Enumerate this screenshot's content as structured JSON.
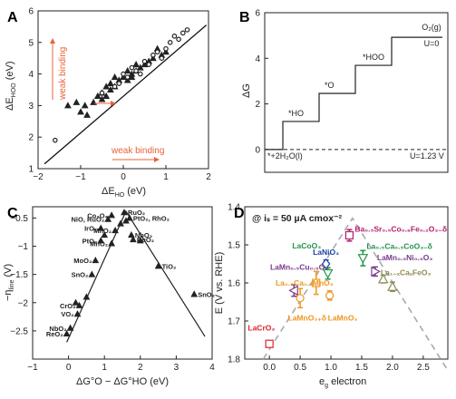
{
  "colors": {
    "axis": "#222222",
    "fit_line": "#111111",
    "weak_binding": "#e8633a",
    "dashed": "#aaaaaa",
    "orange": "#f0961e",
    "red": "#e0202a",
    "blue": "#1b3fa8",
    "green": "#21944a",
    "magenta": "#b21f6e",
    "purple": "#7a3a8e",
    "olive": "#8f8a55",
    "teal": "#2e7a6c"
  },
  "chart_data": [
    {
      "panel": "A",
      "type": "scatter",
      "xlabel_main": "ΔE",
      "xlabel_sub": "HO",
      "xlabel_unit": "(eV)",
      "ylabel_main": "ΔE",
      "ylabel_sub": "HOO",
      "ylabel_unit": "(eV)",
      "xlim": [
        -2,
        2
      ],
      "ylim": [
        1,
        6
      ],
      "xticks": [
        -2,
        -1,
        0,
        1,
        2
      ],
      "yticks": [
        1,
        2,
        3,
        4,
        5,
        6
      ],
      "fit_line": {
        "x": [
          -1.85,
          1.95
        ],
        "y": [
          1.15,
          5.55
        ]
      },
      "annotations": {
        "weak_binding_x": "weak binding",
        "weak_binding_y": "weak binding"
      },
      "series": [
        {
          "marker": "triangle",
          "points": [
            [
              -1.3,
              3.0
            ],
            [
              -1.1,
              3.1
            ],
            [
              -0.9,
              3.0
            ],
            [
              -0.7,
              3.1
            ],
            [
              -0.85,
              2.7
            ],
            [
              -1.0,
              2.8
            ],
            [
              -0.5,
              3.2
            ],
            [
              -0.4,
              3.6
            ],
            [
              -0.6,
              3.3
            ],
            [
              -0.3,
              3.5
            ],
            [
              -0.2,
              3.9
            ],
            [
              -0.1,
              3.8
            ],
            [
              0.0,
              3.9
            ],
            [
              0.1,
              3.8
            ],
            [
              0.2,
              4.0
            ],
            [
              0.3,
              4.1
            ],
            [
              0.4,
              4.2
            ],
            [
              0.5,
              4.3
            ],
            [
              -0.5,
              3.4
            ],
            [
              -0.3,
              3.7
            ],
            [
              0.1,
              4.1
            ],
            [
              0.6,
              4.4
            ],
            [
              0.7,
              4.5
            ],
            [
              0.9,
              4.6
            ],
            [
              0.8,
              4.8
            ],
            [
              1.0,
              4.7
            ],
            [
              -0.2,
              3.6
            ],
            [
              -0.4,
              3.3
            ],
            [
              0.2,
              3.9
            ],
            [
              0.3,
              4.3
            ]
          ]
        },
        {
          "marker": "circle",
          "points": [
            [
              -1.6,
              1.9
            ],
            [
              -0.5,
              3.4
            ],
            [
              -0.2,
              3.6
            ],
            [
              0.0,
              4.0
            ],
            [
              0.2,
              4.2
            ],
            [
              0.4,
              4.0
            ],
            [
              0.5,
              4.4
            ],
            [
              0.6,
              4.3
            ],
            [
              0.7,
              4.6
            ],
            [
              0.8,
              4.7
            ],
            [
              0.9,
              4.5
            ],
            [
              1.0,
              4.8
            ],
            [
              1.1,
              5.0
            ],
            [
              1.2,
              5.2
            ],
            [
              1.3,
              5.1
            ],
            [
              1.4,
              5.3
            ],
            [
              1.5,
              5.4
            ],
            [
              0.3,
              4.1
            ],
            [
              -0.1,
              3.7
            ],
            [
              0.1,
              3.9
            ]
          ]
        }
      ]
    },
    {
      "panel": "B",
      "type": "line",
      "ylabel": "ΔG",
      "ylim": [
        -1,
        6
      ],
      "yticks": [
        0,
        2,
        4,
        6
      ],
      "steps": [
        0,
        1.23,
        2.46,
        3.69,
        4.92
      ],
      "step_labels": [
        "*+2H₂O(l)",
        "*HO",
        "*O",
        "*HOO",
        "O₂(g)"
      ],
      "label_top_right": "U=0",
      "label_bottom_right": "U=1.23 V"
    },
    {
      "panel": "C",
      "type": "scatter",
      "ylabel_main": "−η",
      "ylabel_sub": "line",
      "ylabel_unit": "(V)",
      "xlabel": "ΔG°O − ΔG°HO (eV)",
      "xlim": [
        -1,
        4
      ],
      "ylim": [
        -3,
        -0.3
      ],
      "xticks": [
        -1,
        0,
        1,
        2,
        3,
        4
      ],
      "yticks": [
        -2.5,
        -2.0,
        -1.5,
        -1.0,
        -0.5
      ],
      "volcano": {
        "x": [
          -0.05,
          1.6,
          3.8
        ],
        "y": [
          -2.7,
          -0.38,
          -2.6
        ]
      },
      "points": [
        {
          "x": 1.2,
          "y": -0.45,
          "label": "Co₃O₄"
        },
        {
          "x": 1.55,
          "y": -0.4,
          "label": "RuO₂"
        },
        {
          "x": 1.1,
          "y": -0.52,
          "label": "NiO, RuO₂"
        },
        {
          "x": 1.7,
          "y": -0.5,
          "label": "PtO₂, RhO₂"
        },
        {
          "x": 0.9,
          "y": -0.68,
          "label": "IrO₂"
        },
        {
          "x": 1.3,
          "y": -0.72,
          "label": "MnO₂"
        },
        {
          "x": 1.75,
          "y": -0.8,
          "label": "NbO₂"
        },
        {
          "x": 1.8,
          "y": -0.88,
          "label": "RuO₂"
        },
        {
          "x": 0.9,
          "y": -0.9,
          "label": "PtO₂"
        },
        {
          "x": 1.2,
          "y": -0.95,
          "label": "MnO₂"
        },
        {
          "x": 0.75,
          "y": -1.25,
          "label": "MoO₂"
        },
        {
          "x": 2.5,
          "y": -1.35,
          "label": "TiO₂"
        },
        {
          "x": 0.65,
          "y": -1.5,
          "label": "SnO₂"
        },
        {
          "x": 3.5,
          "y": -1.85,
          "label": "SnO₂"
        },
        {
          "x": 0.3,
          "y": -2.05,
          "label": "CrO₂"
        },
        {
          "x": 0.25,
          "y": -2.2,
          "label": "VO₂"
        },
        {
          "x": 0.05,
          "y": -2.45,
          "label": "NbO₂"
        },
        {
          "x": -0.05,
          "y": -2.55,
          "label": "ReO₂"
        },
        {
          "x": 0.2,
          "y": -2.0,
          "label": ""
        },
        {
          "x": 0.5,
          "y": -1.9,
          "label": ""
        },
        {
          "x": 1.0,
          "y": -0.8,
          "label": ""
        },
        {
          "x": 1.45,
          "y": -0.6,
          "label": ""
        },
        {
          "x": 1.6,
          "y": -0.55,
          "label": ""
        },
        {
          "x": 2.0,
          "y": -0.9,
          "label": ""
        }
      ]
    },
    {
      "panel": "D",
      "type": "scatter",
      "annotation": "@ iₛ = 50 µA cmox⁻²",
      "xlabel_main": "e",
      "xlabel_sub": "g",
      "xlabel_unit": "electron",
      "ylabel": "E (V vs. RHE)",
      "xlim": [
        -0.4,
        2.9
      ],
      "ylim": [
        1.8,
        1.4
      ],
      "xticks": [
        0.0,
        0.5,
        1.0,
        1.5,
        2.0,
        2.5
      ],
      "yticks": [
        1.4,
        1.5,
        1.6,
        1.7,
        1.8
      ],
      "volcano": {
        "x": [
          -0.1,
          1.35,
          2.9
        ],
        "y": [
          1.8,
          1.43,
          1.83
        ]
      },
      "points": [
        {
          "name": "LaNiO₃",
          "x": 0.92,
          "y": 1.55,
          "err": 0.01,
          "color": "blue",
          "marker": "diamond"
        },
        {
          "name": "LaCoO₃",
          "x": 0.95,
          "y": 1.575,
          "err": 0.015,
          "color": "green",
          "marker": "tri_down"
        },
        {
          "name": "La₀.₅Ca₀.₅CoO₃₋δ",
          "x": 1.52,
          "y": 1.535,
          "err": 0.02,
          "color": "green",
          "marker": "tri_down"
        },
        {
          "name": "Ba₀.₅Sr₀.₅Co₀.₈Fe₀.₂O₃₋δ",
          "x": 1.3,
          "y": 1.475,
          "err": 0.015,
          "color": "magenta",
          "marker": "square"
        },
        {
          "name": "LaMn₀.₅Cu₀.₅O₃",
          "x": 0.4,
          "y": 1.62,
          "err": 0.015,
          "color": "purple",
          "marker": "tri_left"
        },
        {
          "name": "La₀.₅Ca₀.₅MnO₃",
          "x": 0.76,
          "y": 1.6,
          "err": 0.03,
          "color": "orange",
          "marker": "square"
        },
        {
          "name": "LaMnO₃₊δ",
          "x": 0.5,
          "y": 1.64,
          "err": 0.025,
          "color": "orange",
          "marker": "circle"
        },
        {
          "name": "LaMnO₃",
          "x": 0.98,
          "y": 1.633,
          "err": 0.012,
          "color": "orange",
          "marker": "circle"
        },
        {
          "name": "LaMn₀.₅Ni₀.₅O₃",
          "x": 1.72,
          "y": 1.57,
          "err": 0.012,
          "color": "purple",
          "marker": "tri_right"
        },
        {
          "name": "La₁₋ₓCaₓFeO₃",
          "x": 1.85,
          "y": 1.59,
          "err": 0.01,
          "color": "olive",
          "marker": "tri_up"
        },
        {
          "name": "",
          "x": 2.0,
          "y": 1.61,
          "err": 0.012,
          "color": "olive",
          "marker": "tri_up"
        },
        {
          "name": "LaCrO₃",
          "x": 0.0,
          "y": 1.76,
          "err": 0.008,
          "color": "red",
          "marker": "square"
        }
      ]
    }
  ],
  "labels": {
    "panel_a": "A",
    "panel_b": "B",
    "panel_c": "C",
    "panel_d": "D"
  }
}
